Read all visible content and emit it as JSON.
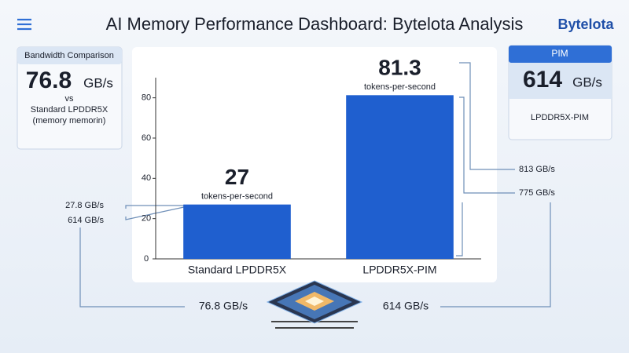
{
  "header": {
    "title": "AI Memory Performance Dashboard: Bytelota Analysis",
    "brand": "Bytelota"
  },
  "left_card": {
    "title": "Bandwidth Comparison",
    "value": "76.8",
    "unit": "GB/s",
    "vs": "vs",
    "subject": "Standard LPDDR5X",
    "note": "(memory memorin)"
  },
  "right_card": {
    "title": "PIM",
    "value": "614",
    "unit": "GB/s",
    "subject": "LPDDR5X-PIM"
  },
  "chart_data": {
    "type": "bar",
    "categories": [
      "Standard LPDDR5X",
      "LPDDR5X-PIM"
    ],
    "values": [
      27,
      81.3
    ],
    "value_sublabel": "tokens-per-second",
    "color": "#1f5fcf",
    "ylim": [
      0,
      90
    ],
    "yticks": [
      0,
      20,
      40,
      60,
      80
    ],
    "grid": false
  },
  "annotations": {
    "left": [
      "27.8 GB/s",
      "614 GB/s"
    ],
    "right": [
      "813 GB/s",
      "775 GB/s"
    ],
    "bottom": [
      "76.8 GB/s",
      "614 GB/s"
    ]
  }
}
